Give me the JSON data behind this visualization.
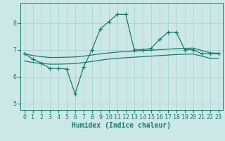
{
  "title": "",
  "xlabel": "Humidex (Indice chaleur)",
  "ylabel": "",
  "background_color": "#cce8e6",
  "grid_color": "#aed4d0",
  "line_color": "#1a7a6e",
  "x": [
    0,
    1,
    2,
    3,
    4,
    5,
    6,
    7,
    8,
    9,
    10,
    11,
    12,
    13,
    14,
    15,
    16,
    17,
    18,
    19,
    20,
    21,
    22,
    23
  ],
  "y_jagged": [
    6.85,
    6.65,
    6.5,
    6.3,
    6.3,
    6.28,
    5.35,
    6.35,
    7.0,
    7.78,
    8.05,
    8.32,
    8.32,
    7.0,
    7.0,
    7.05,
    7.38,
    7.65,
    7.65,
    7.0,
    7.0,
    6.85,
    6.85,
    6.85
  ],
  "y_upper": [
    6.85,
    6.78,
    6.74,
    6.71,
    6.71,
    6.72,
    6.73,
    6.76,
    6.8,
    6.85,
    6.88,
    6.91,
    6.93,
    6.95,
    6.97,
    6.98,
    7.0,
    7.02,
    7.04,
    7.05,
    7.06,
    6.97,
    6.88,
    6.87
  ],
  "y_lower": [
    6.58,
    6.52,
    6.49,
    6.46,
    6.46,
    6.47,
    6.48,
    6.52,
    6.56,
    6.61,
    6.65,
    6.68,
    6.7,
    6.72,
    6.74,
    6.76,
    6.78,
    6.8,
    6.82,
    6.83,
    6.84,
    6.76,
    6.68,
    6.66
  ],
  "ylim": [
    4.75,
    8.75
  ],
  "xlim": [
    -0.5,
    23.5
  ],
  "yticks": [
    5,
    6,
    7,
    8
  ],
  "xticks": [
    0,
    1,
    2,
    3,
    4,
    5,
    6,
    7,
    8,
    9,
    10,
    11,
    12,
    13,
    14,
    15,
    16,
    17,
    18,
    19,
    20,
    21,
    22,
    23
  ],
  "marker": "+",
  "markersize": 4,
  "markeredgewidth": 0.9,
  "linewidth": 0.9,
  "xlabel_fontsize": 7,
  "tick_fontsize": 6
}
